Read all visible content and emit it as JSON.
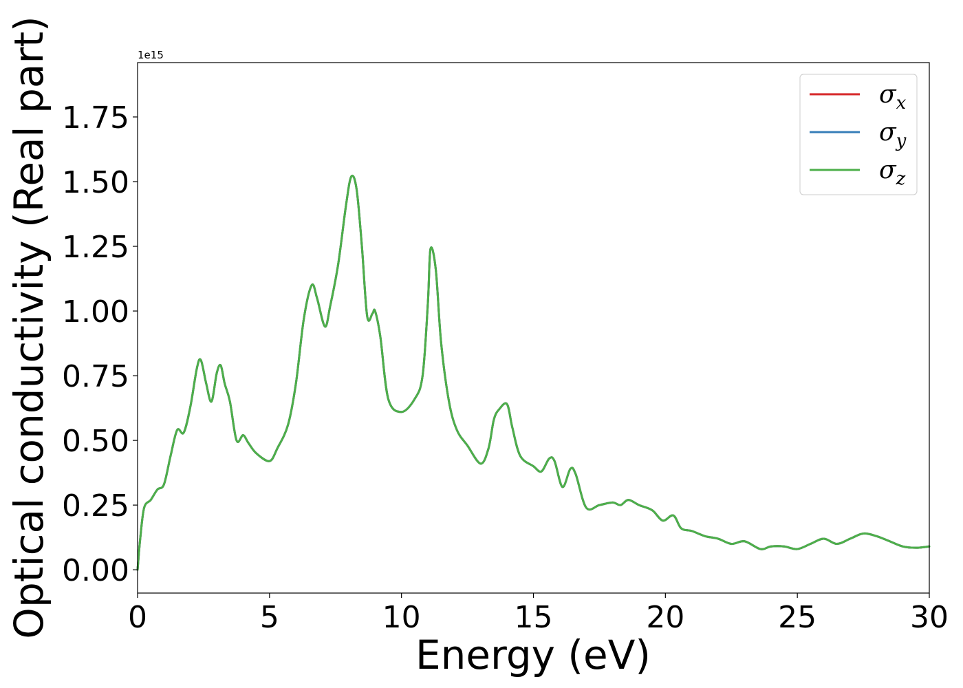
{
  "chart_data": {
    "type": "line",
    "title": "",
    "xlabel": "Energy (eV)",
    "ylabel": "Optical conductivity (Real part)",
    "y_offset_label": "1e15",
    "y_scale_factor": 1000000000000000.0,
    "xlim": [
      0,
      30
    ],
    "ylim": [
      -0.09,
      1.96
    ],
    "x_ticks": [
      0,
      5,
      10,
      15,
      20,
      25,
      30
    ],
    "x_tick_labels": [
      "0",
      "5",
      "10",
      "15",
      "20",
      "25",
      "30"
    ],
    "y_ticks": [
      0,
      0.25,
      0.5,
      0.75,
      1.0,
      1.25,
      1.5,
      1.75
    ],
    "y_tick_labels": [
      "0.00",
      "0.25",
      "0.50",
      "0.75",
      "1.00",
      "1.25",
      "1.50",
      "1.75"
    ],
    "grid": false,
    "legend_position": "top-right",
    "x": [
      0,
      0.1,
      0.25,
      0.5,
      0.75,
      1.0,
      1.25,
      1.5,
      1.75,
      2.0,
      2.25,
      2.4,
      2.6,
      2.8,
      3.0,
      3.15,
      3.3,
      3.5,
      3.75,
      4.0,
      4.2,
      4.5,
      5.0,
      5.3,
      5.7,
      6.0,
      6.3,
      6.6,
      6.8,
      7.1,
      7.3,
      7.6,
      7.9,
      8.1,
      8.3,
      8.5,
      8.7,
      8.9,
      9.0,
      9.2,
      9.5,
      10.0,
      10.5,
      10.8,
      11.0,
      11.1,
      11.3,
      11.5,
      11.8,
      12.1,
      12.5,
      13.0,
      13.3,
      13.5,
      13.7,
      14.0,
      14.2,
      14.5,
      15.0,
      15.3,
      15.6,
      15.8,
      16.1,
      16.4,
      16.6,
      17.0,
      17.5,
      18.0,
      18.3,
      18.6,
      19.0,
      19.5,
      19.9,
      20.3,
      20.6,
      21.0,
      21.5,
      22.0,
      22.5,
      23.0,
      23.6,
      24.0,
      24.5,
      25.0,
      25.5,
      26.0,
      26.5,
      27.0,
      27.5,
      28.0,
      28.5,
      29.0,
      29.5,
      30.0
    ],
    "series": [
      {
        "name": "σx",
        "color": "#d62728",
        "values": [
          0.0,
          0.12,
          0.24,
          0.27,
          0.31,
          0.33,
          0.44,
          0.54,
          0.53,
          0.63,
          0.78,
          0.81,
          0.72,
          0.65,
          0.76,
          0.79,
          0.72,
          0.65,
          0.5,
          0.52,
          0.49,
          0.45,
          0.42,
          0.47,
          0.56,
          0.72,
          0.97,
          1.1,
          1.05,
          0.94,
          1.02,
          1.18,
          1.41,
          1.52,
          1.47,
          1.25,
          0.98,
          0.99,
          1.0,
          0.9,
          0.66,
          0.61,
          0.66,
          0.75,
          1.03,
          1.24,
          1.16,
          0.88,
          0.65,
          0.54,
          0.48,
          0.41,
          0.47,
          0.58,
          0.62,
          0.64,
          0.55,
          0.44,
          0.4,
          0.38,
          0.43,
          0.42,
          0.32,
          0.39,
          0.37,
          0.24,
          0.25,
          0.26,
          0.25,
          0.27,
          0.25,
          0.23,
          0.19,
          0.21,
          0.16,
          0.15,
          0.13,
          0.12,
          0.1,
          0.11,
          0.08,
          0.09,
          0.09,
          0.08,
          0.1,
          0.12,
          0.1,
          0.12,
          0.14,
          0.13,
          0.11,
          0.09,
          0.085,
          0.09
        ]
      },
      {
        "name": "σy",
        "color": "#377eb8",
        "values": [
          0.0,
          0.12,
          0.24,
          0.27,
          0.31,
          0.33,
          0.44,
          0.54,
          0.53,
          0.63,
          0.78,
          0.81,
          0.72,
          0.65,
          0.76,
          0.79,
          0.72,
          0.65,
          0.5,
          0.52,
          0.49,
          0.45,
          0.42,
          0.47,
          0.56,
          0.72,
          0.97,
          1.1,
          1.05,
          0.94,
          1.02,
          1.18,
          1.41,
          1.52,
          1.47,
          1.25,
          0.98,
          0.99,
          1.0,
          0.9,
          0.66,
          0.61,
          0.66,
          0.75,
          1.03,
          1.24,
          1.16,
          0.88,
          0.65,
          0.54,
          0.48,
          0.41,
          0.47,
          0.58,
          0.62,
          0.64,
          0.55,
          0.44,
          0.4,
          0.38,
          0.43,
          0.42,
          0.32,
          0.39,
          0.37,
          0.24,
          0.25,
          0.26,
          0.25,
          0.27,
          0.25,
          0.23,
          0.19,
          0.21,
          0.16,
          0.15,
          0.13,
          0.12,
          0.1,
          0.11,
          0.08,
          0.09,
          0.09,
          0.08,
          0.1,
          0.12,
          0.1,
          0.12,
          0.14,
          0.13,
          0.11,
          0.09,
          0.085,
          0.09
        ]
      },
      {
        "name": "σz",
        "color": "#4daf4a",
        "values": [
          0.0,
          0.12,
          0.24,
          0.27,
          0.31,
          0.33,
          0.44,
          0.54,
          0.53,
          0.63,
          0.78,
          0.81,
          0.72,
          0.65,
          0.76,
          0.79,
          0.72,
          0.65,
          0.5,
          0.52,
          0.49,
          0.45,
          0.42,
          0.47,
          0.56,
          0.72,
          0.97,
          1.1,
          1.05,
          0.94,
          1.02,
          1.18,
          1.41,
          1.52,
          1.47,
          1.25,
          0.98,
          0.99,
          1.0,
          0.9,
          0.66,
          0.61,
          0.66,
          0.75,
          1.03,
          1.24,
          1.16,
          0.88,
          0.65,
          0.54,
          0.48,
          0.41,
          0.47,
          0.58,
          0.62,
          0.64,
          0.55,
          0.44,
          0.4,
          0.38,
          0.43,
          0.42,
          0.32,
          0.39,
          0.37,
          0.24,
          0.25,
          0.26,
          0.25,
          0.27,
          0.25,
          0.23,
          0.19,
          0.21,
          0.16,
          0.15,
          0.13,
          0.12,
          0.1,
          0.11,
          0.08,
          0.09,
          0.09,
          0.08,
          0.1,
          0.12,
          0.1,
          0.12,
          0.14,
          0.13,
          0.11,
          0.09,
          0.085,
          0.09
        ]
      }
    ],
    "legend": [
      {
        "base": "σ",
        "sub": "x"
      },
      {
        "base": "σ",
        "sub": "y"
      },
      {
        "base": "σ",
        "sub": "z"
      }
    ]
  }
}
